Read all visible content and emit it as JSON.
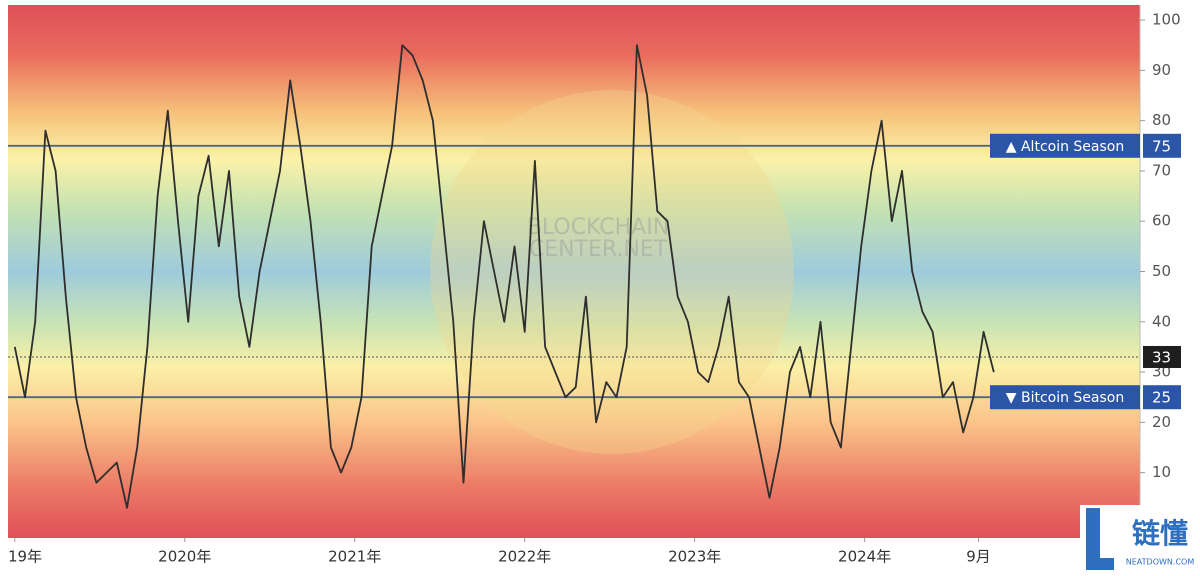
{
  "chart_data": {
    "type": "line",
    "color": "#2e2e2e",
    "x": [
      2019,
      2019.06,
      2019.12,
      2019.18,
      2019.24,
      2019.3,
      2019.36,
      2019.42,
      2019.48,
      2019.54,
      2019.6,
      2019.66,
      2019.72,
      2019.78,
      2019.84,
      2019.9,
      2019.96,
      2020.02,
      2020.08,
      2020.14,
      2020.2,
      2020.26,
      2020.32,
      2020.38,
      2020.44,
      2020.5,
      2020.56,
      2020.62,
      2020.68,
      2020.74,
      2020.8,
      2020.86,
      2020.92,
      2020.98,
      2021.04,
      2021.1,
      2021.16,
      2021.22,
      2021.28,
      2021.34,
      2021.4,
      2021.46,
      2021.52,
      2021.58,
      2021.64,
      2021.7,
      2021.76,
      2021.82,
      2021.88,
      2021.94,
      2022,
      2022.06,
      2022.12,
      2022.18,
      2022.24,
      2022.3,
      2022.36,
      2022.42,
      2022.48,
      2022.54,
      2022.6,
      2022.66,
      2022.72,
      2022.78,
      2022.84,
      2022.9,
      2022.96,
      2023.02,
      2023.08,
      2023.14,
      2023.2,
      2023.26,
      2023.32,
      2023.38,
      2023.44,
      2023.5,
      2023.56,
      2023.62,
      2023.68,
      2023.74,
      2023.8,
      2023.86,
      2023.92,
      2023.98,
      2024.04,
      2024.1,
      2024.16,
      2024.22,
      2024.28,
      2024.34,
      2024.4,
      2024.46,
      2024.52,
      2024.58,
      2024.64,
      2024.7,
      2024.76
    ],
    "values": [
      35,
      25,
      40,
      78,
      70,
      45,
      25,
      15,
      8,
      10,
      12,
      3,
      15,
      35,
      65,
      82,
      60,
      40,
      65,
      73,
      55,
      70,
      45,
      35,
      50,
      60,
      70,
      88,
      75,
      60,
      40,
      15,
      10,
      15,
      25,
      55,
      65,
      75,
      95,
      93,
      88,
      80,
      60,
      40,
      8,
      40,
      60,
      50,
      40,
      55,
      38,
      72,
      35,
      30,
      25,
      27,
      45,
      20,
      28,
      25,
      35,
      95,
      85,
      62,
      60,
      45,
      40,
      30,
      28,
      35,
      45,
      28,
      25,
      15,
      5,
      15,
      30,
      35,
      25,
      40,
      20,
      15,
      35,
      55,
      70,
      80,
      60,
      70,
      50,
      42,
      38,
      25,
      28,
      18,
      25,
      38,
      30
    ],
    "xlim": [
      2018.96,
      2025.62
    ],
    "xticks": [
      {
        "value": 2019,
        "label": "19年"
      },
      {
        "value": 2020,
        "label": "2020年"
      },
      {
        "value": 2021,
        "label": "2021年"
      },
      {
        "value": 2022,
        "label": "2022年"
      },
      {
        "value": 2023,
        "label": "2023年"
      },
      {
        "value": 2024,
        "label": "2024年"
      },
      {
        "value": 2024.67,
        "label": "9月"
      }
    ],
    "ylim": [
      -3,
      103
    ],
    "yticks": [
      10,
      20,
      30,
      40,
      50,
      60,
      70,
      80,
      90,
      100
    ],
    "reference_lines": [
      {
        "value": 75,
        "label": "▲ Altcoin Season"
      },
      {
        "value": 25,
        "label": "▼ Bitcoin Season"
      }
    ],
    "current": {
      "value": 33
    },
    "watermark": [
      "BLOCKCHAIN",
      "CENTER.NET"
    ],
    "logo": {
      "text": "链懂",
      "site": "NEATDOWN.COM"
    }
  }
}
